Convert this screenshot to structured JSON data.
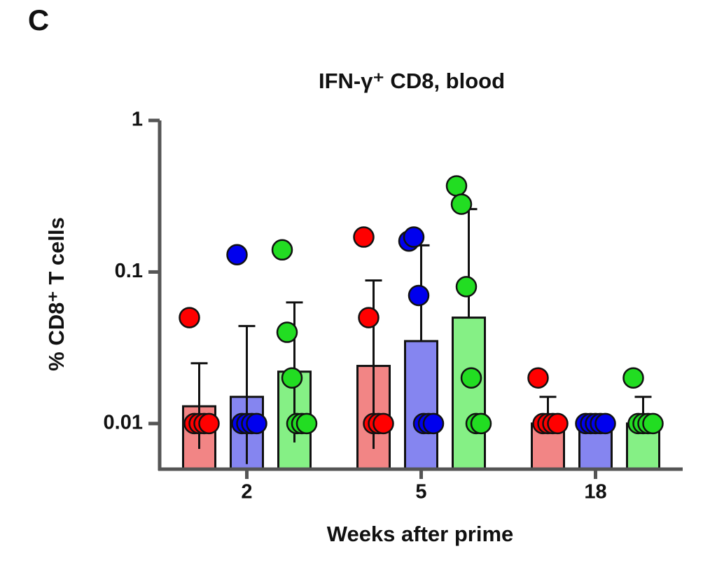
{
  "chart_data": {
    "type": "bar",
    "panel_label": "C",
    "title": "IFN-γ⁺ CD8, blood",
    "y_label": "% CD8⁺ T cells",
    "x_label": "Weeks after prime",
    "yscale": "log",
    "ylim": [
      0.005,
      1
    ],
    "yticks": [
      0.01,
      0.1,
      1
    ],
    "categories": [
      "2",
      "5",
      "18"
    ],
    "series": [
      {
        "color": "#ff0000",
        "bar_color": "#f28585",
        "values": [
          0.013,
          0.024,
          0.01
        ],
        "err_lo": [
          0.0068,
          0.0068,
          null
        ],
        "err_hi": [
          0.025,
          0.088,
          0.015
        ],
        "points": [
          [
            0.05,
            0.01,
            0.01,
            0.01,
            0.01
          ],
          [
            0.17,
            0.05,
            0.01,
            0.01,
            0.01
          ],
          [
            0.02,
            0.01,
            0.01,
            0.01,
            0.01
          ]
        ]
      },
      {
        "color": "#0000ee",
        "bar_color": "#8585f0",
        "values": [
          0.015,
          0.035,
          0.01
        ],
        "err_lo": [
          0.0054,
          null,
          null
        ],
        "err_hi": [
          0.044,
          0.15,
          null
        ],
        "points": [
          [
            0.13,
            0.01,
            0.01,
            0.01,
            0.01
          ],
          [
            0.16,
            0.17,
            0.07,
            0.01,
            0.01,
            0.01
          ],
          [
            0.01,
            0.01,
            0.01,
            0.01,
            0.01
          ]
        ]
      },
      {
        "color": "#22dd22",
        "bar_color": "#85f085",
        "values": [
          0.022,
          0.05,
          0.01
        ],
        "err_lo": [
          0.0075,
          null,
          null
        ],
        "err_hi": [
          0.063,
          0.26,
          0.015
        ],
        "points": [
          [
            0.14,
            0.04,
            0.02,
            0.01,
            0.01,
            0.01
          ],
          [
            0.37,
            0.28,
            0.08,
            0.02,
            0.01,
            0.01
          ],
          [
            0.02,
            0.01,
            0.01,
            0.01,
            0.01
          ]
        ]
      }
    ]
  }
}
